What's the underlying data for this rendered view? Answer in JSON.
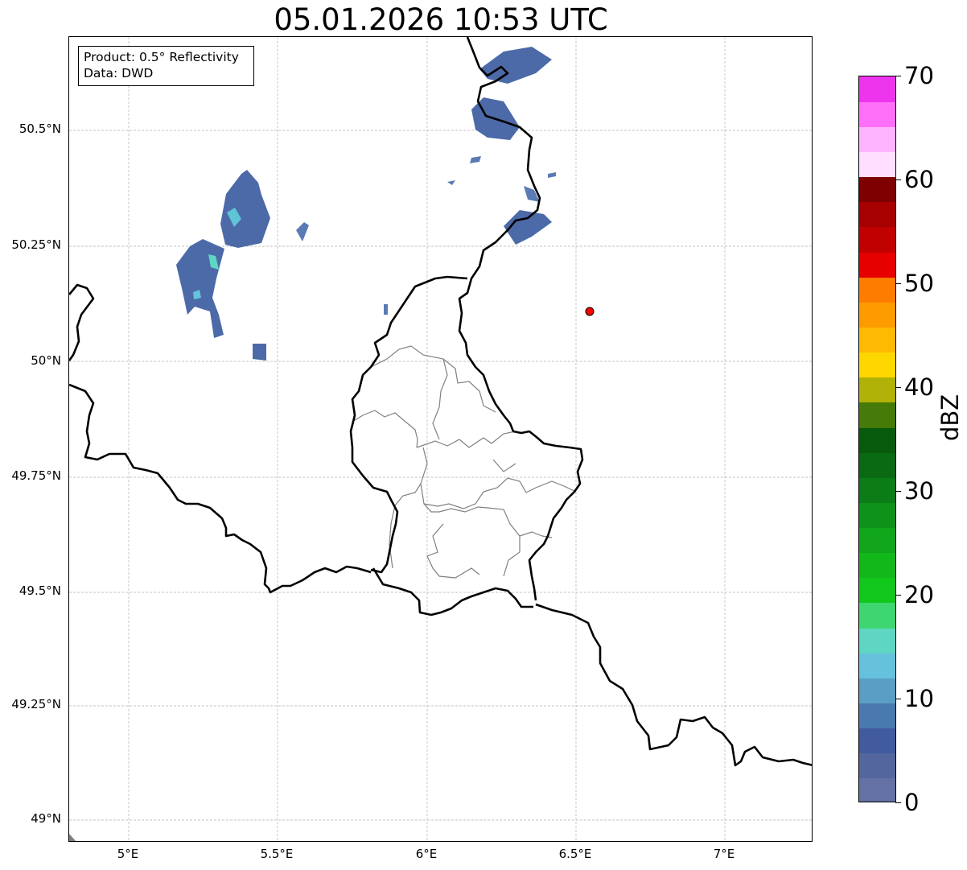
{
  "title": "05.01.2026 10:53 UTC",
  "info": {
    "product": "Product: 0.5° Reflectivity",
    "data": "Data: DWD"
  },
  "lat_ticks": [
    "50.5°N",
    "50.25°N",
    "50°N",
    "49.75°N",
    "49.5°N",
    "49.25°N",
    "49°N"
  ],
  "lon_ticks": [
    "5°E",
    "5.5°E",
    "6°E",
    "6.5°E",
    "7°E"
  ],
  "marker": {
    "lon": 6.55,
    "lat": 50.11,
    "color": "#ff0000"
  },
  "colorbar": {
    "unit": "dBZ",
    "min": 0,
    "max": 70,
    "labels": [
      "0",
      "10",
      "20",
      "30",
      "40",
      "50",
      "60",
      "70"
    ],
    "colors": [
      "#6471a4",
      "#53669e",
      "#415b9e",
      "#4a79b0",
      "#5a9ec6",
      "#66c2dc",
      "#5fd6c3",
      "#3dd671",
      "#12c71c",
      "#12b81a",
      "#10a51a",
      "#0e921a",
      "#0b7c16",
      "#0a6a13",
      "#085a0d",
      "#467a09",
      "#b1b208",
      "#fed700",
      "#feb902",
      "#fe9b00",
      "#fe7d00",
      "#e60000",
      "#c10000",
      "#a60000",
      "#7e0000",
      "#ffdeff",
      "#ffb4ff",
      "#ff6ff8",
      "#ed35ed"
    ]
  },
  "colors": {
    "country_border": "#000000",
    "admin_border": "#808080",
    "grid": "#b0b0b0"
  }
}
